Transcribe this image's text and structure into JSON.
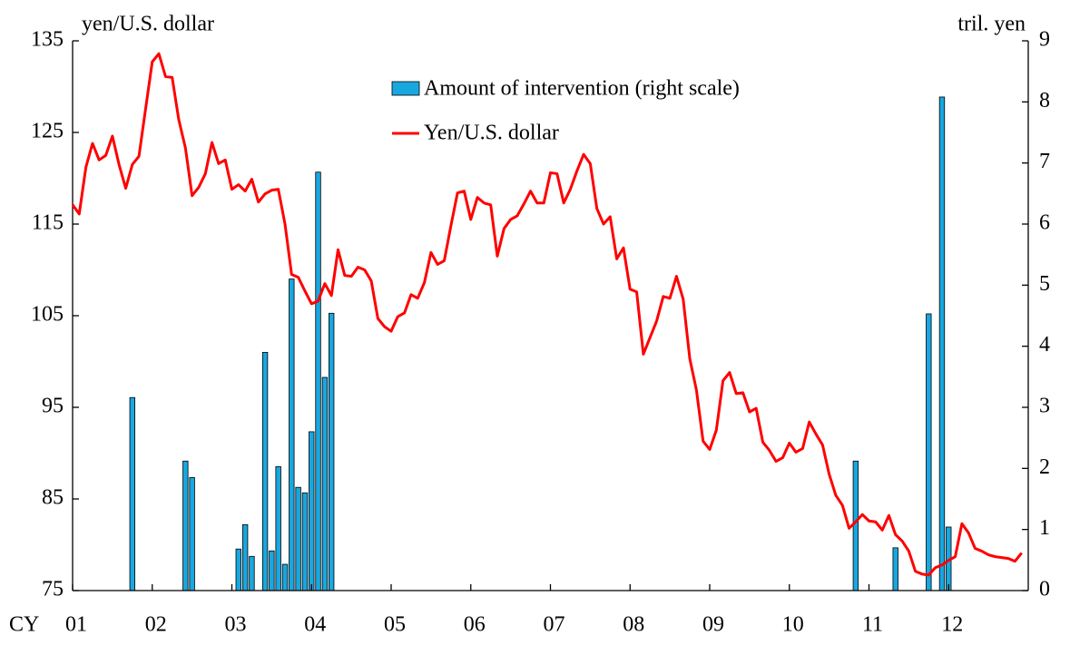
{
  "chart_data": {
    "type": "combo",
    "ylabel": "yen/U.S. dollar",
    "y2label": "tril. yen",
    "xlabel": "CY",
    "xlim": [
      2001,
      2013
    ],
    "xticks": [
      {
        "value": 2001,
        "label": "01"
      },
      {
        "value": 2002,
        "label": "02"
      },
      {
        "value": 2003,
        "label": "03"
      },
      {
        "value": 2004,
        "label": "04"
      },
      {
        "value": 2005,
        "label": "05"
      },
      {
        "value": 2006,
        "label": "06"
      },
      {
        "value": 2007,
        "label": "07"
      },
      {
        "value": 2008,
        "label": "08"
      },
      {
        "value": 2009,
        "label": "09"
      },
      {
        "value": 2010,
        "label": "10"
      },
      {
        "value": 2011,
        "label": "11"
      },
      {
        "value": 2012,
        "label": "12"
      }
    ],
    "ylim": [
      75,
      135
    ],
    "yticks": [
      75,
      85,
      95,
      105,
      115,
      125,
      135
    ],
    "y2lim": [
      0,
      9
    ],
    "y2ticks": [
      0,
      1,
      2,
      3,
      4,
      5,
      6,
      7,
      8,
      9
    ],
    "series": [
      {
        "name": "Amount of intervention (right scale)",
        "type": "bar",
        "axis": "y2",
        "color": "#19a7e0",
        "x": [
          2001.75,
          2002.417,
          2002.5,
          2003.083,
          2003.167,
          2003.25,
          2003.417,
          2003.5,
          2003.583,
          2003.667,
          2003.75,
          2003.833,
          2003.917,
          2004.0,
          2004.083,
          2004.167,
          2004.25,
          2010.833,
          2011.333,
          2011.75,
          2011.917,
          2012.0
        ],
        "values": [
          3.16,
          2.12,
          1.85,
          0.68,
          1.08,
          0.56,
          3.9,
          0.65,
          2.03,
          0.43,
          5.1,
          1.69,
          1.6,
          2.6,
          6.85,
          3.49,
          4.54,
          2.12,
          0.7,
          4.53,
          8.08,
          1.04
        ]
      },
      {
        "name": "Yen/U.S. dollar",
        "type": "line",
        "color": "#ff0000",
        "x": [
          2001.0,
          2001.083,
          2001.167,
          2001.25,
          2001.333,
          2001.417,
          2001.5,
          2001.583,
          2001.667,
          2001.75,
          2001.833,
          2001.917,
          2002.0,
          2002.083,
          2002.167,
          2002.25,
          2002.333,
          2002.417,
          2002.5,
          2002.583,
          2002.667,
          2002.75,
          2002.833,
          2002.917,
          2003.0,
          2003.083,
          2003.167,
          2003.25,
          2003.333,
          2003.417,
          2003.5,
          2003.583,
          2003.667,
          2003.75,
          2003.833,
          2003.917,
          2004.0,
          2004.083,
          2004.167,
          2004.25,
          2004.333,
          2004.417,
          2004.5,
          2004.583,
          2004.667,
          2004.75,
          2004.833,
          2004.917,
          2005.0,
          2005.083,
          2005.167,
          2005.25,
          2005.333,
          2005.417,
          2005.5,
          2005.583,
          2005.667,
          2005.75,
          2005.833,
          2005.917,
          2006.0,
          2006.083,
          2006.167,
          2006.25,
          2006.333,
          2006.417,
          2006.5,
          2006.583,
          2006.667,
          2006.75,
          2006.833,
          2006.917,
          2007.0,
          2007.083,
          2007.167,
          2007.25,
          2007.333,
          2007.417,
          2007.5,
          2007.583,
          2007.667,
          2007.75,
          2007.833,
          2007.917,
          2008.0,
          2008.083,
          2008.167,
          2008.25,
          2008.333,
          2008.417,
          2008.5,
          2008.583,
          2008.667,
          2008.75,
          2008.833,
          2008.917,
          2009.0,
          2009.083,
          2009.167,
          2009.25,
          2009.333,
          2009.417,
          2009.5,
          2009.583,
          2009.667,
          2009.75,
          2009.833,
          2009.917,
          2010.0,
          2010.083,
          2010.167,
          2010.25,
          2010.333,
          2010.417,
          2010.5,
          2010.583,
          2010.667,
          2010.75,
          2010.833,
          2010.917,
          2011.0,
          2011.083,
          2011.167,
          2011.25,
          2011.333,
          2011.417,
          2011.5,
          2011.583,
          2011.667,
          2011.75,
          2011.833,
          2011.917,
          2012.0,
          2012.083,
          2012.167,
          2012.25,
          2012.333,
          2012.417,
          2012.5,
          2012.583,
          2012.667,
          2012.75,
          2012.833,
          2012.917
        ],
        "values": [
          117.1,
          116.1,
          121.2,
          123.8,
          122.0,
          122.5,
          124.6,
          121.5,
          118.9,
          121.5,
          122.4,
          127.6,
          132.7,
          133.6,
          131.1,
          131.0,
          126.4,
          123.3,
          118.1,
          119.0,
          120.5,
          123.9,
          121.6,
          122.0,
          118.8,
          119.3,
          118.6,
          119.9,
          117.4,
          118.3,
          118.7,
          118.8,
          115.0,
          109.5,
          109.2,
          107.7,
          106.3,
          106.6,
          108.5,
          107.2,
          112.2,
          109.4,
          109.3,
          110.3,
          110.0,
          108.8,
          104.7,
          103.8,
          103.3,
          104.9,
          105.3,
          107.3,
          106.9,
          108.6,
          111.9,
          110.6,
          111.0,
          114.8,
          118.4,
          118.6,
          115.5,
          117.9,
          117.3,
          117.1,
          111.5,
          114.5,
          115.5,
          115.9,
          117.2,
          118.6,
          117.3,
          117.3,
          120.6,
          120.5,
          117.3,
          118.8,
          120.8,
          122.6,
          121.6,
          116.7,
          115.0,
          115.8,
          111.2,
          112.4,
          107.9,
          107.6,
          100.8,
          102.6,
          104.4,
          107.1,
          106.9,
          109.3,
          106.8,
          100.3,
          96.9,
          91.3,
          90.4,
          92.5,
          97.9,
          98.8,
          96.5,
          96.6,
          94.5,
          94.9,
          91.2,
          90.3,
          89.1,
          89.5,
          91.1,
          90.1,
          90.5,
          93.4,
          92.1,
          90.9,
          87.7,
          85.4,
          84.3,
          81.8,
          82.5,
          83.3,
          82.6,
          82.5,
          81.6,
          83.2,
          81.1,
          80.4,
          79.3,
          77.1,
          76.8,
          76.7,
          77.5,
          77.8,
          78.3,
          78.7,
          82.3,
          81.3,
          79.6,
          79.3,
          78.9,
          78.7,
          78.6,
          78.5,
          78.2,
          79.1
        ]
      }
    ]
  }
}
